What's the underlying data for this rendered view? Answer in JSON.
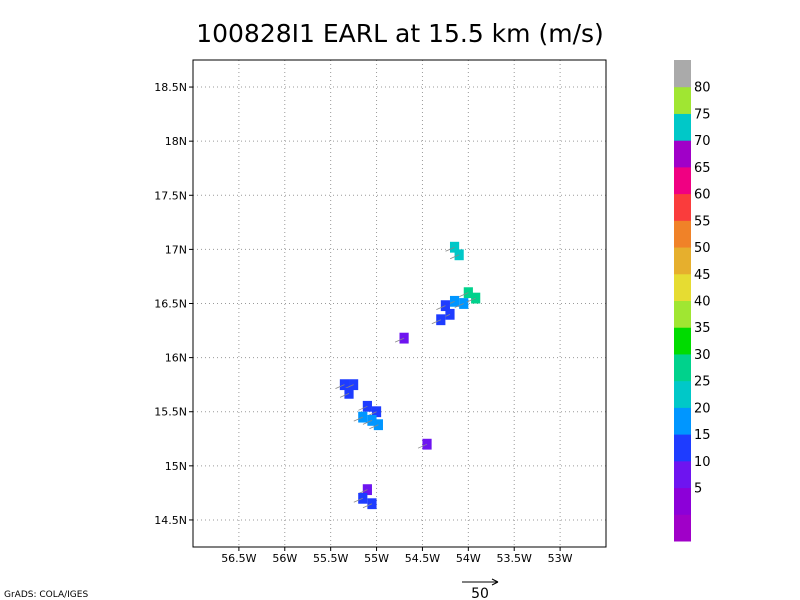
{
  "title": "100828I1 EARL at 15.5 km (m/s)",
  "credit": "GrADS: COLA/IGES",
  "vector_reference": {
    "label": "50",
    "value": 50
  },
  "chart_data": {
    "type": "heatmap",
    "title": "100828I1 EARL at 15.5 km (m/s)",
    "units": "m/s",
    "xlim": [
      -57.0,
      -52.5
    ],
    "ylim": [
      14.25,
      18.75
    ],
    "grid": true,
    "x_ticks": [
      {
        "value": -56.5,
        "label": "56.5W"
      },
      {
        "value": -56.0,
        "label": "56W"
      },
      {
        "value": -55.5,
        "label": "55.5W"
      },
      {
        "value": -55.0,
        "label": "55W"
      },
      {
        "value": -54.5,
        "label": "54.5W"
      },
      {
        "value": -54.0,
        "label": "54W"
      },
      {
        "value": -53.5,
        "label": "53.5W"
      },
      {
        "value": -53.0,
        "label": "53W"
      }
    ],
    "y_ticks": [
      {
        "value": 14.5,
        "label": "14.5N"
      },
      {
        "value": 15.0,
        "label": "15N"
      },
      {
        "value": 15.5,
        "label": "15.5N"
      },
      {
        "value": 16.0,
        "label": "16N"
      },
      {
        "value": 16.5,
        "label": "16.5N"
      },
      {
        "value": 17.0,
        "label": "17N"
      },
      {
        "value": 17.5,
        "label": "17.5N"
      },
      {
        "value": 18.0,
        "label": "18N"
      },
      {
        "value": 18.5,
        "label": "18.5N"
      }
    ],
    "colorbar": {
      "levels": [
        {
          "label": "",
          "color": "#a000c8"
        },
        {
          "label": "5",
          "color": "#8c00d8"
        },
        {
          "label": "10",
          "color": "#6e14f0"
        },
        {
          "label": "15",
          "color": "#1e3cff"
        },
        {
          "label": "20",
          "color": "#0096ff"
        },
        {
          "label": "25",
          "color": "#00c8c8"
        },
        {
          "label": "30",
          "color": "#00d28c"
        },
        {
          "label": "35",
          "color": "#00dc00"
        },
        {
          "label": "40",
          "color": "#a0e632"
        },
        {
          "label": "45",
          "color": "#e6dc32"
        },
        {
          "label": "50",
          "color": "#e6af2d"
        },
        {
          "label": "55",
          "color": "#f08228"
        },
        {
          "label": "60",
          "color": "#fa3c3c"
        },
        {
          "label": "65",
          "color": "#f00082"
        },
        {
          "label": "70",
          "color": "#a000c8"
        },
        {
          "label": "75",
          "color": "#00c8c8"
        },
        {
          "label": "80",
          "color": "#a0e632"
        },
        {
          "label": "",
          "color": "#aaaaaa"
        }
      ]
    },
    "cells": [
      {
        "lon": -55.35,
        "lat": 15.75,
        "speed": 15
      },
      {
        "lon": -55.25,
        "lat": 15.75,
        "speed": 15
      },
      {
        "lon": -55.3,
        "lat": 15.67,
        "speed": 15
      },
      {
        "lon": -55.1,
        "lat": 15.55,
        "speed": 15
      },
      {
        "lon": -55.0,
        "lat": 15.5,
        "speed": 15
      },
      {
        "lon": -55.15,
        "lat": 15.45,
        "speed": 20
      },
      {
        "lon": -55.05,
        "lat": 15.42,
        "speed": 20
      },
      {
        "lon": -54.98,
        "lat": 15.38,
        "speed": 20
      },
      {
        "lon": -54.7,
        "lat": 16.18,
        "speed": 10
      },
      {
        "lon": -54.45,
        "lat": 15.2,
        "speed": 10
      },
      {
        "lon": -55.1,
        "lat": 14.78,
        "speed": 10
      },
      {
        "lon": -55.15,
        "lat": 14.7,
        "speed": 15
      },
      {
        "lon": -55.05,
        "lat": 14.65,
        "speed": 15
      },
      {
        "lon": -54.15,
        "lat": 17.02,
        "speed": 25
      },
      {
        "lon": -54.1,
        "lat": 16.95,
        "speed": 25
      },
      {
        "lon": -54.15,
        "lat": 16.52,
        "speed": 20
      },
      {
        "lon": -54.05,
        "lat": 16.5,
        "speed": 20
      },
      {
        "lon": -54.25,
        "lat": 16.48,
        "speed": 15
      },
      {
        "lon": -54.2,
        "lat": 16.4,
        "speed": 15
      },
      {
        "lon": -54.3,
        "lat": 16.35,
        "speed": 15
      },
      {
        "lon": -54.0,
        "lat": 16.6,
        "speed": 30
      },
      {
        "lon": -53.92,
        "lat": 16.55,
        "speed": 30
      }
    ]
  }
}
